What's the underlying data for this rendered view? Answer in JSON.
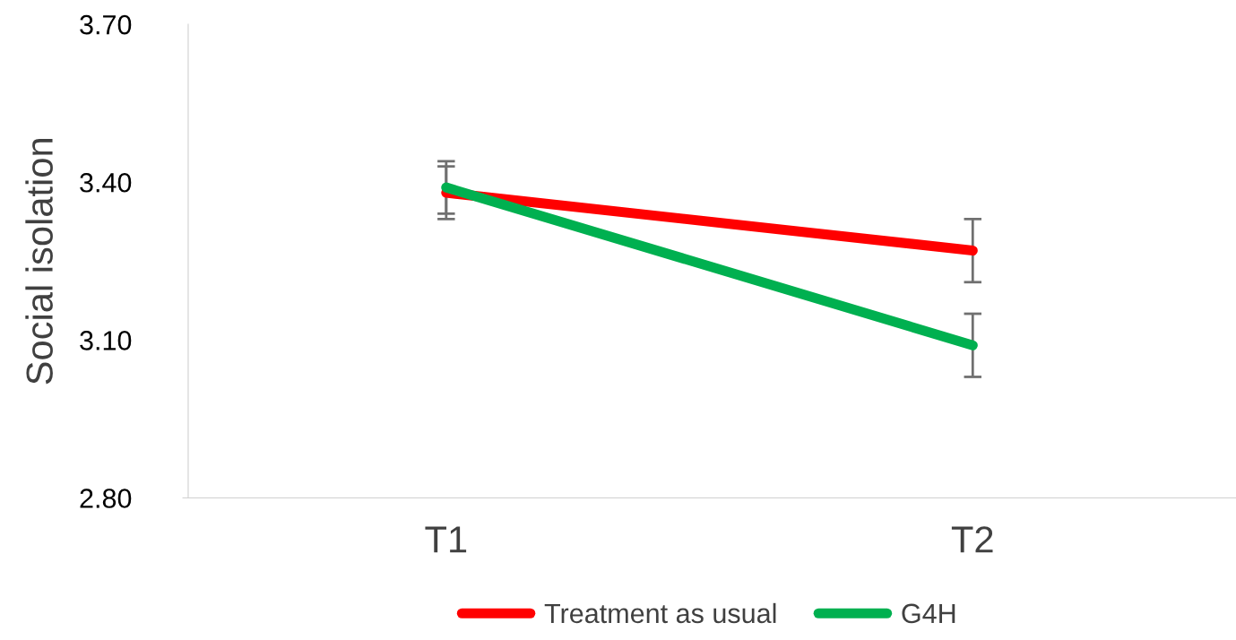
{
  "chart_data": {
    "type": "line",
    "ylabel": "Social isolation",
    "categories": [
      "T1",
      "T2"
    ],
    "series": [
      {
        "name": "Treatment as usual",
        "color": "#ff0000",
        "values": [
          3.38,
          3.27
        ],
        "errors": [
          0.05,
          0.06
        ]
      },
      {
        "name": "G4H",
        "color": "#00b050",
        "values": [
          3.39,
          3.09
        ],
        "errors": [
          0.05,
          0.06
        ]
      }
    ],
    "ylim": [
      2.8,
      3.7
    ],
    "yticks": [
      {
        "value": 2.8,
        "label": "2.80"
      },
      {
        "value": 3.1,
        "label": "3.10"
      },
      {
        "value": 3.4,
        "label": "3.40"
      },
      {
        "value": 3.7,
        "label": "3.70"
      }
    ],
    "grid": false,
    "legend": "bottom",
    "marker": "none",
    "line_style": "solid"
  }
}
